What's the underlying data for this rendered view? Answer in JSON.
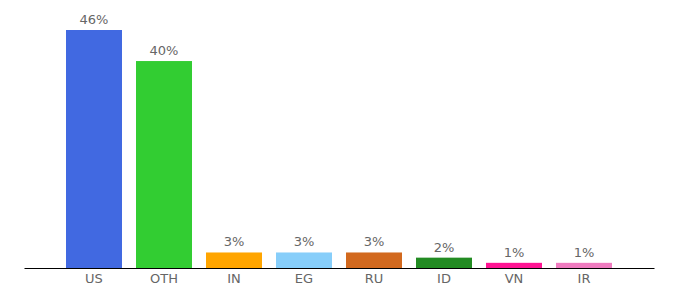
{
  "chart_data": {
    "type": "bar",
    "categories": [
      "US",
      "OTH",
      "IN",
      "EG",
      "RU",
      "ID",
      "VN",
      "IR"
    ],
    "values": [
      46,
      40,
      3,
      3,
      3,
      2,
      1,
      1
    ],
    "value_labels": [
      "46%",
      "40%",
      "3%",
      "3%",
      "3%",
      "2%",
      "1%",
      "1%"
    ],
    "colors": [
      "#4169e1",
      "#32cd32",
      "#ffa500",
      "#87cefa",
      "#d2691e",
      "#228b22",
      "#ff1493",
      "#f07cc0"
    ],
    "data_labels": true,
    "tick_labels": "x"
  }
}
